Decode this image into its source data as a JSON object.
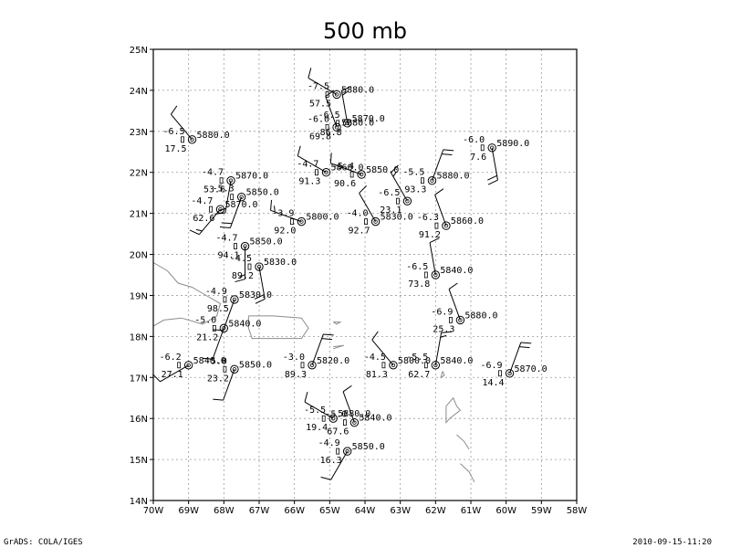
{
  "title": "500 mb",
  "footer_left": "GrADS: COLA/IGES",
  "footer_right": "2010-09-15-11:20",
  "chart_data": {
    "type": "map-station-plot",
    "x_range": [
      -70,
      -58
    ],
    "y_range": [
      14,
      25
    ],
    "x_ticks": [
      {
        "value": -70,
        "label": "70W"
      },
      {
        "value": -69,
        "label": "69W"
      },
      {
        "value": -68,
        "label": "68W"
      },
      {
        "value": -67,
        "label": "67W"
      },
      {
        "value": -66,
        "label": "66W"
      },
      {
        "value": -65,
        "label": "65W"
      },
      {
        "value": -64,
        "label": "64W"
      },
      {
        "value": -63,
        "label": "63W"
      },
      {
        "value": -62,
        "label": "62W"
      },
      {
        "value": -61,
        "label": "61W"
      },
      {
        "value": -60,
        "label": "60W"
      },
      {
        "value": -59,
        "label": "59W"
      },
      {
        "value": -58,
        "label": "58W"
      }
    ],
    "y_ticks": [
      {
        "value": 14,
        "label": "14N"
      },
      {
        "value": 15,
        "label": "15N"
      },
      {
        "value": 16,
        "label": "16N"
      },
      {
        "value": 17,
        "label": "17N"
      },
      {
        "value": 18,
        "label": "18N"
      },
      {
        "value": 19,
        "label": "19N"
      },
      {
        "value": 20,
        "label": "20N"
      },
      {
        "value": 21,
        "label": "21N"
      },
      {
        "value": 22,
        "label": "22N"
      },
      {
        "value": 23,
        "label": "23N"
      },
      {
        "value": 24,
        "label": "24N"
      },
      {
        "value": 25,
        "label": "25N"
      }
    ],
    "grid": true,
    "coastlines": [
      [
        [
          -70,
          19.8
        ],
        [
          -69.6,
          19.6
        ],
        [
          -69.3,
          19.3
        ],
        [
          -68.9,
          19.2
        ],
        [
          -68.5,
          19.0
        ],
        [
          -68.1,
          18.8
        ],
        [
          -68.2,
          18.5
        ],
        [
          -68.6,
          18.3
        ],
        [
          -69.2,
          18.45
        ],
        [
          -69.7,
          18.4
        ],
        [
          -70,
          18.25
        ]
      ],
      [
        [
          -67.3,
          18.5
        ],
        [
          -66.6,
          18.5
        ],
        [
          -65.8,
          18.45
        ],
        [
          -65.6,
          18.2
        ],
        [
          -65.8,
          17.95
        ],
        [
          -66.6,
          17.95
        ],
        [
          -67.2,
          17.95
        ],
        [
          -67.3,
          18.2
        ],
        [
          -67.3,
          18.5
        ]
      ],
      [
        [
          -64.9,
          18.35
        ],
        [
          -64.7,
          18.35
        ],
        [
          -64.8,
          18.3
        ],
        [
          -64.9,
          18.35
        ]
      ],
      [
        [
          -64.9,
          17.75
        ],
        [
          -64.6,
          17.78
        ],
        [
          -64.9,
          17.7
        ]
      ],
      [
        [
          -61.8,
          17.15
        ],
        [
          -61.75,
          17.05
        ],
        [
          -61.85,
          17.0
        ],
        [
          -61.8,
          17.15
        ]
      ],
      [
        [
          -61.7,
          16.3
        ],
        [
          -61.5,
          16.5
        ],
        [
          -61.4,
          16.3
        ],
        [
          -61.3,
          16.2
        ],
        [
          -61.6,
          16.0
        ],
        [
          -61.7,
          15.9
        ],
        [
          -61.7,
          16.3
        ]
      ],
      [
        [
          -61.4,
          15.6
        ],
        [
          -61.2,
          15.45
        ],
        [
          -61.05,
          15.25
        ]
      ],
      [
        [
          -61.3,
          14.9
        ],
        [
          -61.05,
          14.7
        ],
        [
          -60.9,
          14.45
        ]
      ]
    ],
    "stations": [
      {
        "lon": -64.8,
        "lat": 23.9,
        "t": "-7.5",
        "h": "5880.0",
        "rh": "57.5",
        "wd": 300,
        "ws": 12
      },
      {
        "lon": -68.9,
        "lat": 22.8,
        "t": "-6.5",
        "h": "5880.0",
        "rh": "17.5",
        "wd": 320,
        "ws": 8
      },
      {
        "lon": -64.8,
        "lat": 23.1,
        "t": "-6.0",
        "h": "5880.0",
        "rh": "69.8",
        "wd": 340,
        "ws": 10
      },
      {
        "lon": -64.5,
        "lat": 23.2,
        "t": "-6.5",
        "h": "5870.0",
        "rh": "86.8",
        "wd": 350,
        "ws": 15
      },
      {
        "lon": -60.4,
        "lat": 22.6,
        "t": "-6.0",
        "h": "5890.0",
        "rh": "7.6",
        "wd": 170,
        "ws": 18
      },
      {
        "lon": -67.8,
        "lat": 21.8,
        "t": "-4.7",
        "h": "5870.0",
        "rh": "53.6",
        "wd": 190,
        "ws": 15
      },
      {
        "lon": -65.1,
        "lat": 22.0,
        "t": "-4.7",
        "h": "5860.0",
        "rh": "91.3",
        "wd": 300,
        "ws": 12
      },
      {
        "lon": -64.1,
        "lat": 21.95,
        "t": "-5.4",
        "h": "5850.0",
        "rh": "90.6",
        "wd": 290,
        "ws": 10
      },
      {
        "lon": -62.1,
        "lat": 21.8,
        "t": "-5.5",
        "h": "5880.0",
        "rh": "93.3",
        "wd": 20,
        "ws": 18
      },
      {
        "lon": -67.5,
        "lat": 21.4,
        "t": "-5.3",
        "h": "5850.0",
        "rh": "",
        "wd": 200,
        "ws": 18
      },
      {
        "lon": -62.8,
        "lat": 21.3,
        "t": "-6.5",
        "h": "",
        "rh": "23.1",
        "wd": 330,
        "ws": 15
      },
      {
        "lon": -68.1,
        "lat": 21.1,
        "t": "-4.7",
        "h": "5870.0",
        "rh": "62.6",
        "wd": 220,
        "ws": 15
      },
      {
        "lon": -65.8,
        "lat": 20.8,
        "t": "-3.9",
        "h": "5800.0",
        "rh": "92.0",
        "wd": 290,
        "ws": 15
      },
      {
        "lon": -63.7,
        "lat": 20.8,
        "t": "-4.0",
        "h": "5830.0",
        "rh": "92.7",
        "wd": 330,
        "ws": 12
      },
      {
        "lon": -61.7,
        "lat": 20.7,
        "t": "-6.3",
        "h": "5860.0",
        "rh": "91.2",
        "wd": 340,
        "ws": 12
      },
      {
        "lon": -67.4,
        "lat": 20.2,
        "t": "-4.7",
        "h": "5850.0",
        "rh": "94.1",
        "wd": 180,
        "ws": 15
      },
      {
        "lon": -67.0,
        "lat": 19.7,
        "t": "-4.5",
        "h": "5830.0",
        "rh": "89.2",
        "wd": 170,
        "ws": 18
      },
      {
        "lon": -62.0,
        "lat": 19.5,
        "t": "-6.5",
        "h": "5840.0",
        "rh": "73.8",
        "wd": 350,
        "ws": 12
      },
      {
        "lon": -67.7,
        "lat": 18.9,
        "t": "-4.9",
        "h": "5830.0",
        "rh": "98.5",
        "wd": 200,
        "ws": 10
      },
      {
        "lon": -68.0,
        "lat": 18.2,
        "t": "-5.0",
        "h": "5840.0",
        "rh": "21.2",
        "wd": 200,
        "ws": 12
      },
      {
        "lon": -61.3,
        "lat": 18.4,
        "t": "-6.9",
        "h": "5880.0",
        "rh": "25.3",
        "wd": 340,
        "ws": 10
      },
      {
        "lon": -69.0,
        "lat": 17.3,
        "t": "-6.2",
        "h": "5840.0",
        "rh": "27.1",
        "wd": 240,
        "ws": 8
      },
      {
        "lon": -67.7,
        "lat": 17.2,
        "t": "-5.0",
        "h": "5850.0",
        "rh": "23.2",
        "wd": 200,
        "ws": 12
      },
      {
        "lon": -65.5,
        "lat": 17.3,
        "t": "-3.0",
        "h": "5820.0",
        "rh": "89.3",
        "wd": 20,
        "ws": 18
      },
      {
        "lon": -63.2,
        "lat": 17.3,
        "t": "-4.5",
        "h": "5800.0",
        "rh": "81.3",
        "wd": 320,
        "ws": 8
      },
      {
        "lon": -62.0,
        "lat": 17.3,
        "t": "-5.5",
        "h": "5840.0",
        "rh": "62.7",
        "wd": 10,
        "ws": 15
      },
      {
        "lon": -59.9,
        "lat": 17.1,
        "t": "-6.9",
        "h": "5870.0",
        "rh": "14.4",
        "wd": 20,
        "ws": 20
      },
      {
        "lon": -64.9,
        "lat": 16.0,
        "t": "-5.5",
        "h": "5880.0",
        "rh": "19.4",
        "wd": 300,
        "ws": 10
      },
      {
        "lon": -64.3,
        "lat": 15.9,
        "t": "-5.0",
        "h": "5840.0",
        "rh": "67.6",
        "wd": 340,
        "ws": 10
      },
      {
        "lon": -64.5,
        "lat": 15.2,
        "t": "-4.9",
        "h": "5850.0",
        "rh": "16.3",
        "wd": 210,
        "ws": 12
      }
    ]
  }
}
